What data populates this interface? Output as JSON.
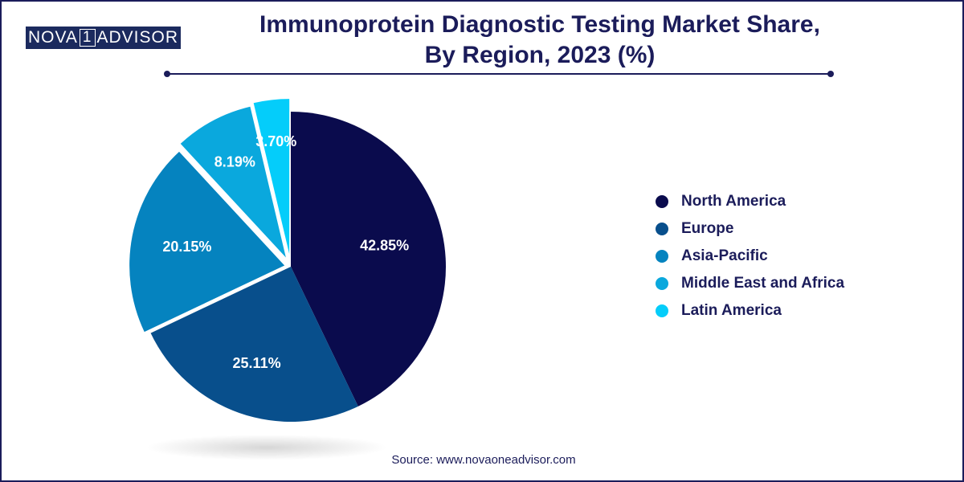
{
  "logo": {
    "part1": "NOVA",
    "part2": "1",
    "part3": "ADVISOR"
  },
  "chart_data": {
    "type": "pie",
    "title": "Immunoprotein Diagnostic Testing Market Share,",
    "subtitle": "By Region, 2023 (%)",
    "slices": [
      {
        "name": "North America",
        "value": 42.85,
        "label": "42.85%",
        "color": "#0a0b4d"
      },
      {
        "name": "Europe",
        "value": 25.11,
        "label": "25.11%",
        "color": "#084f8c"
      },
      {
        "name": "Asia-Pacific",
        "value": 20.15,
        "label": "20.15%",
        "color": "#0583bf"
      },
      {
        "name": "Middle East and Africa",
        "value": 8.19,
        "label": "8.19%",
        "color": "#0aa8dd"
      },
      {
        "name": "Latin America",
        "value": 3.7,
        "label": "3.70%",
        "color": "#04cdfa"
      }
    ],
    "legend_position": "right"
  },
  "source": "Source: www.novaoneadvisor.com"
}
